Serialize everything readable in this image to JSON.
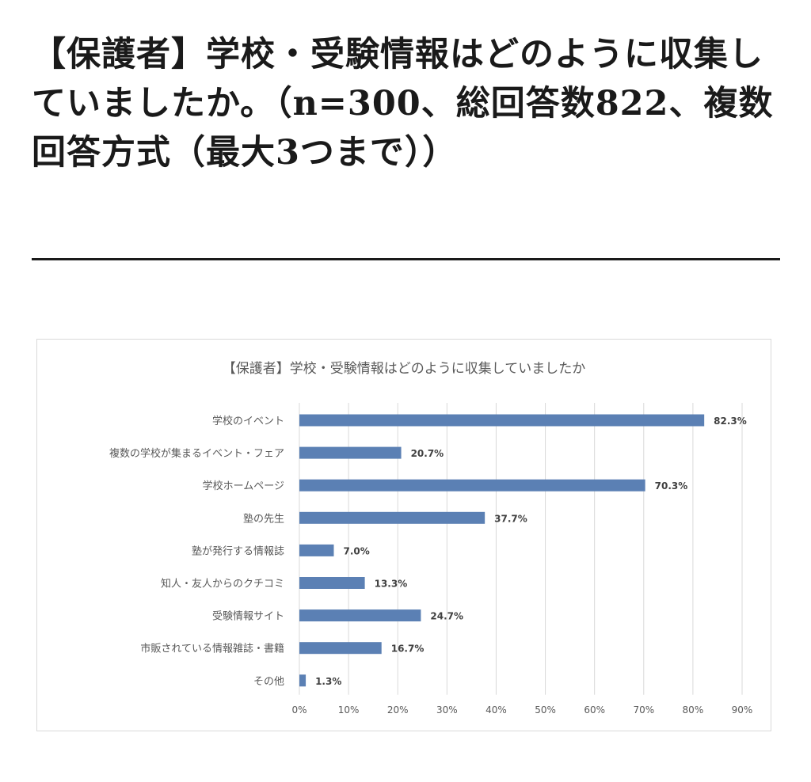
{
  "headline": "【保護者】学校・受験情報はどのように収集していましたか。（n=300、総回答数822、複数回答方式（最大3つまで））",
  "chart_data": {
    "type": "bar",
    "orientation": "horizontal",
    "title": "【保護者】学校・受験情報はどのように収集していましたか",
    "categories": [
      "学校のイベント",
      "複数の学校が集まるイベント・フェア",
      "学校ホームページ",
      "塾の先生",
      "塾が発行する情報誌",
      "知人・友人からのクチコミ",
      "受験情報サイト",
      "市販されている情報雑誌・書籍",
      "その他"
    ],
    "values": [
      82.3,
      20.7,
      70.3,
      37.7,
      7.0,
      13.3,
      24.7,
      16.7,
      1.3
    ],
    "value_labels": [
      "82.3%",
      "20.7%",
      "70.3%",
      "37.7%",
      "7.0%",
      "13.3%",
      "24.7%",
      "16.7%",
      "1.3%"
    ],
    "xlim": [
      0,
      90
    ],
    "xticks": [
      0,
      10,
      20,
      30,
      40,
      50,
      60,
      70,
      80,
      90
    ],
    "xtick_labels": [
      "0%",
      "10%",
      "20%",
      "30%",
      "40%",
      "50%",
      "60%",
      "70%",
      "80%",
      "90%"
    ],
    "grid": "vertical",
    "legend": "none",
    "bar_color": "#5b80b4",
    "grid_color": "#d9d9d9"
  }
}
